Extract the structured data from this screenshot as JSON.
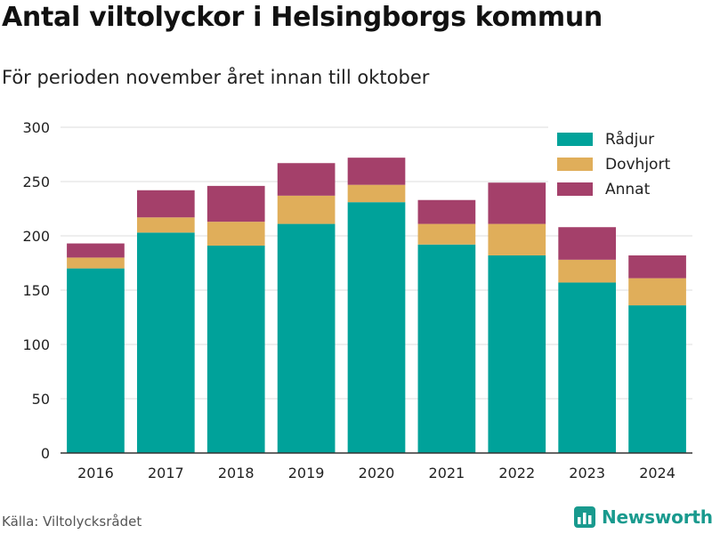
{
  "header": {
    "title": "Antal viltolyckor i Helsingborgs kommun",
    "subtitle": "För perioden november året innan till oktober"
  },
  "footer": {
    "source": "Källa: Viltolycksrådet",
    "brand": "Newsworthy"
  },
  "icons": {
    "brand_logo": "bar-chart-logo-icon"
  },
  "chart_data": {
    "type": "bar",
    "stacked": true,
    "categories": [
      "2016",
      "2017",
      "2018",
      "2019",
      "2020",
      "2021",
      "2022",
      "2023",
      "2024"
    ],
    "series": [
      {
        "name": "Rådjur",
        "color": "#00a29a",
        "values": [
          170,
          203,
          191,
          211,
          231,
          192,
          182,
          157,
          136
        ]
      },
      {
        "name": "Dovhjort",
        "color": "#e0ae5a",
        "values": [
          10,
          14,
          22,
          26,
          16,
          19,
          29,
          21,
          25
        ]
      },
      {
        "name": "Annat",
        "color": "#a4406a",
        "values": [
          13,
          25,
          33,
          30,
          25,
          22,
          38,
          30,
          21
        ]
      }
    ],
    "ylim": [
      0,
      300
    ],
    "yticks": [
      0,
      50,
      100,
      150,
      200,
      250,
      300
    ],
    "grid": true,
    "legend_position": "top-right"
  }
}
